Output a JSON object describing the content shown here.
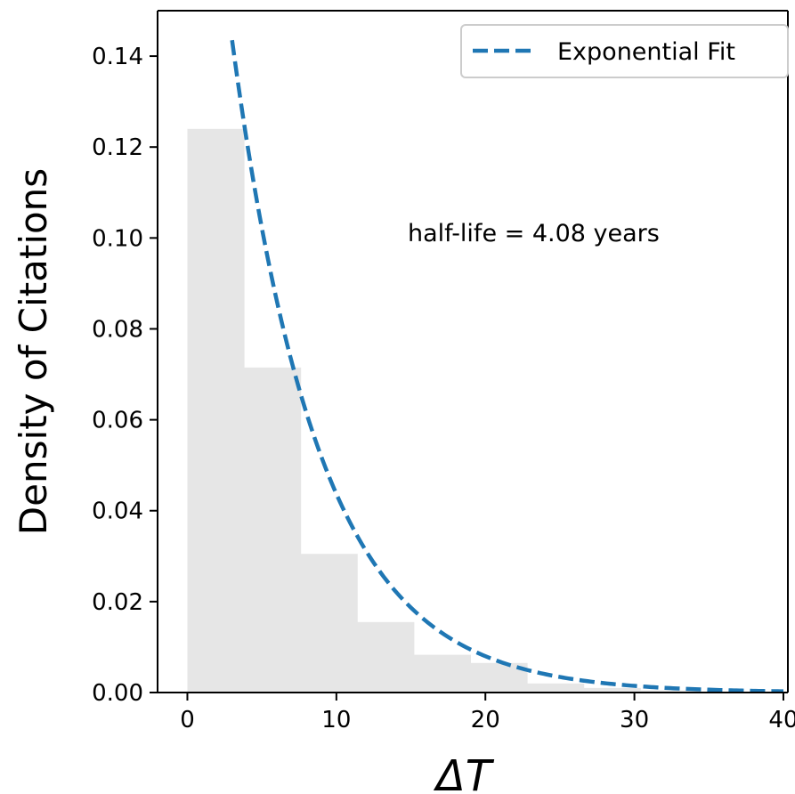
{
  "chart_data": {
    "type": "bar",
    "title": "",
    "xlabel": "ΔT",
    "ylabel": "Density of Citations",
    "xlim": [
      -2,
      40.3
    ],
    "ylim": [
      0,
      0.15
    ],
    "x_ticks": [
      "0",
      "10",
      "20",
      "30",
      "40"
    ],
    "y_ticks": [
      "0.00",
      "0.02",
      "0.04",
      "0.06",
      "0.08",
      "0.10",
      "0.12",
      "0.14"
    ],
    "histogram": {
      "bin_edges": [
        0,
        3.8,
        7.6,
        11.4,
        15.2,
        19.0,
        22.8,
        26.6,
        30.4,
        34.2,
        38.0
      ],
      "values": [
        0.124,
        0.0715,
        0.0305,
        0.0155,
        0.0083,
        0.0065,
        0.002,
        0.001,
        0.0005,
        0.0002
      ],
      "color": "#e6e6e6"
    },
    "series": [
      {
        "name": "Exponential Fit",
        "style": "dashed",
        "color": "#1f77b4",
        "x_start": 3.0,
        "x_end": 40,
        "y_at_start": 0.1435,
        "half_life": 4.08
      }
    ],
    "annotation": "half-life = 4.08 years",
    "legend_position": "top-right",
    "grid": false
  }
}
